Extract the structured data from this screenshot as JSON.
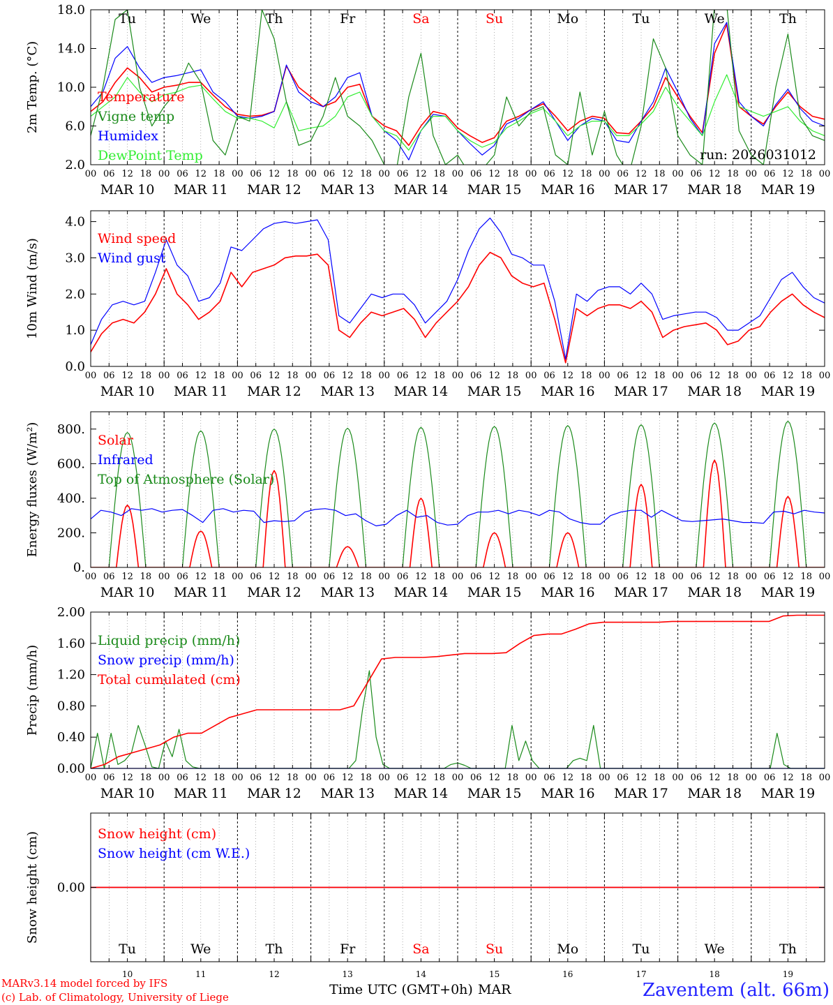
{
  "colors": {
    "red": "#ff0000",
    "green": "#1a8a1a",
    "blue": "#0000ff",
    "light_green": "#33ee33",
    "axis": "#000000",
    "grid": "#777777"
  },
  "day_names": [
    "Tu",
    "We",
    "Th",
    "Fr",
    "Sa",
    "Su",
    "Mo",
    "Tu",
    "We",
    "Th"
  ],
  "weekend_day_indices": [
    4,
    5
  ],
  "date_labels": [
    "MAR 10",
    "MAR 11",
    "MAR 12",
    "MAR 13",
    "MAR 14",
    "MAR 15",
    "MAR 16",
    "MAR 17",
    "MAR 18",
    "MAR 19"
  ],
  "day_numbers": [
    "10",
    "11",
    "12",
    "13",
    "14",
    "15",
    "16",
    "17",
    "18",
    "19"
  ],
  "hour_labels": [
    "00",
    "06",
    "12",
    "18"
  ],
  "final_hour_label": "00",
  "run_label": "run: 2026031012",
  "x_axis_label": "Time UTC (GMT+0h)",
  "month_label": "MAR",
  "credit_line1": "MARv3.14 model forced by IFS",
  "credit_line2": "(c) Lab. of Climatology, University of Liege",
  "station_label": "Zaventem (alt. 66m)",
  "chart_data": [
    {
      "id": "temp",
      "type": "line",
      "ylabel": "2m Temp. (°C)",
      "ylim": [
        2,
        18
      ],
      "ticks": [
        2,
        6,
        10,
        14,
        18
      ],
      "tick_labels": [
        "2.0",
        "6.0",
        "10.0",
        "14.0",
        "18.0"
      ],
      "legend": [
        "Temperature",
        "Vigne temp",
        "Humidex",
        "DewPoint Temp"
      ],
      "series": [
        {
          "name": "Temperature",
          "color": "red",
          "clip": false,
          "values": [
            7.5,
            8.5,
            10.5,
            12.0,
            11.0,
            9.5,
            10.0,
            10.2,
            10.5,
            10.5,
            9.2,
            8.0,
            7.2,
            7.0,
            7.1,
            7.5,
            12.2,
            10.0,
            9.0,
            8.0,
            8.5,
            10.0,
            10.3,
            7.0,
            6.0,
            5.5,
            4.0,
            6.0,
            7.5,
            7.2,
            5.8,
            5.0,
            4.3,
            4.8,
            6.5,
            7.0,
            7.7,
            8.3,
            7.0,
            5.5,
            6.5,
            7.0,
            6.8,
            5.3,
            5.2,
            6.5,
            8.0,
            11.0,
            9.0,
            7.0,
            5.3,
            13.5,
            16.5,
            8.0,
            7.0,
            6.2,
            8.0,
            9.5,
            8.0,
            7.0,
            6.7
          ]
        },
        {
          "name": "Humidex",
          "color": "blue",
          "clip": false,
          "values": [
            8.0,
            9.5,
            13.0,
            14.2,
            12.0,
            10.5,
            11.0,
            11.2,
            11.5,
            11.8,
            9.5,
            8.5,
            7.0,
            6.8,
            7.0,
            7.5,
            12.3,
            9.5,
            8.5,
            8.0,
            9.0,
            11.0,
            11.5,
            7.0,
            5.5,
            4.5,
            2.5,
            5.5,
            7.2,
            7.0,
            5.5,
            4.2,
            3.0,
            4.0,
            6.2,
            6.8,
            7.7,
            8.5,
            6.5,
            4.5,
            6.0,
            6.8,
            6.5,
            4.5,
            4.3,
            6.5,
            8.5,
            12.0,
            9.5,
            6.8,
            5.0,
            14.5,
            16.7,
            8.5,
            7.0,
            6.0,
            8.2,
            9.8,
            7.8,
            6.5,
            6.0
          ]
        },
        {
          "name": "DewPoint Temp",
          "color": "light_green",
          "clip": false,
          "values": [
            7.0,
            8.0,
            9.0,
            11.0,
            9.5,
            8.5,
            9.2,
            9.5,
            10.0,
            10.2,
            8.8,
            7.5,
            6.8,
            6.8,
            6.5,
            5.8,
            8.5,
            5.5,
            5.8,
            6.0,
            7.0,
            9.0,
            9.5,
            7.0,
            5.5,
            5.0,
            3.5,
            5.5,
            7.0,
            7.0,
            5.5,
            4.5,
            3.8,
            4.3,
            5.8,
            6.5,
            7.3,
            7.8,
            6.5,
            5.0,
            6.0,
            6.5,
            6.5,
            5.0,
            5.0,
            6.2,
            7.5,
            10.0,
            8.0,
            6.5,
            5.0,
            8.5,
            11.3,
            8.0,
            7.5,
            7.0,
            7.5,
            8.0,
            6.5,
            5.5,
            5.0
          ]
        },
        {
          "name": "Vigne temp",
          "color": "green",
          "clip": true,
          "values": [
            5.0,
            10.0,
            17.0,
            18.0,
            10.0,
            6.0,
            8.0,
            9.5,
            12.5,
            10.5,
            4.5,
            3.0,
            7.0,
            6.5,
            18.0,
            15.0,
            8.5,
            4.0,
            4.5,
            7.0,
            11.0,
            7.0,
            6.0,
            4.5,
            2.0,
            1.5,
            9.0,
            13.5,
            5.0,
            2.0,
            3.0,
            1.0,
            1.5,
            3.0,
            9.0,
            6.0,
            7.5,
            8.0,
            3.0,
            2.0,
            9.5,
            3.0,
            7.5,
            3.0,
            1.0,
            6.0,
            15.0,
            12.0,
            5.0,
            3.0,
            2.0,
            18.5,
            18.5,
            5.5,
            3.0,
            2.0,
            10.0,
            15.5,
            7.0,
            5.0,
            4.5
          ]
        }
      ]
    },
    {
      "id": "wind",
      "type": "line",
      "ylabel": "10m Wind (m/s)",
      "ylim": [
        0,
        4.3
      ],
      "ticks": [
        0,
        1,
        2,
        3,
        4
      ],
      "tick_labels": [
        "0.0",
        "1.0",
        "2.0",
        "3.0",
        "4.0"
      ],
      "legend": [
        "Wind speed",
        "Wind gust"
      ],
      "series": [
        {
          "name": "Wind speed",
          "color": "red",
          "clip": false,
          "values": [
            0.4,
            0.9,
            1.2,
            1.3,
            1.2,
            1.5,
            2.0,
            2.7,
            2.0,
            1.7,
            1.3,
            1.5,
            1.8,
            2.6,
            2.2,
            2.6,
            2.7,
            2.8,
            3.0,
            3.05,
            3.05,
            3.1,
            2.8,
            1.0,
            0.8,
            1.2,
            1.5,
            1.4,
            1.5,
            1.6,
            1.3,
            0.8,
            1.2,
            1.5,
            1.8,
            2.2,
            2.8,
            3.15,
            3.0,
            2.5,
            2.3,
            2.2,
            2.3,
            1.3,
            0.1,
            1.6,
            1.4,
            1.6,
            1.7,
            1.7,
            1.6,
            1.8,
            1.5,
            0.8,
            1.0,
            1.1,
            1.15,
            1.2,
            1.0,
            0.6,
            0.7,
            1.0,
            1.1,
            1.5,
            1.8,
            2.0,
            1.7,
            1.5,
            1.35
          ]
        },
        {
          "name": "Wind gust",
          "color": "blue",
          "clip": false,
          "values": [
            0.6,
            1.3,
            1.7,
            1.8,
            1.7,
            1.8,
            2.6,
            3.5,
            2.8,
            2.5,
            1.8,
            1.9,
            2.3,
            3.3,
            3.2,
            3.5,
            3.8,
            3.95,
            4.0,
            3.95,
            4.0,
            4.05,
            3.5,
            1.4,
            1.2,
            1.6,
            2.0,
            1.9,
            2.0,
            2.0,
            1.7,
            1.2,
            1.5,
            1.8,
            2.4,
            3.2,
            3.8,
            4.1,
            3.7,
            3.1,
            3.0,
            2.8,
            2.8,
            1.8,
            0.2,
            2.0,
            1.8,
            2.1,
            2.2,
            2.2,
            2.0,
            2.3,
            2.0,
            1.3,
            1.4,
            1.45,
            1.5,
            1.5,
            1.35,
            1.0,
            1.0,
            1.2,
            1.4,
            1.9,
            2.4,
            2.6,
            2.2,
            1.9,
            1.75
          ]
        }
      ]
    },
    {
      "id": "flux",
      "type": "line",
      "ylabel": "Energy fluxes (W/m²)",
      "ylim": [
        0,
        900
      ],
      "ticks": [
        0,
        200,
        400,
        600,
        800
      ],
      "tick_labels": [
        "0.",
        "200.",
        "400.",
        "600.",
        "800."
      ],
      "legend": [
        "Solar",
        "Infrared",
        "Top of Atmosphere (Solar)"
      ],
      "series": [
        {
          "name": "Top of Atmosphere (Solar)",
          "color": "green",
          "diurnal": "peak",
          "values": [
            780,
            790,
            800,
            805,
            810,
            815,
            820,
            825,
            835,
            845
          ]
        },
        {
          "name": "Solar",
          "color": "red",
          "diurnal": "peak",
          "values": [
            360,
            210,
            560,
            120,
            400,
            200,
            200,
            480,
            620,
            410
          ]
        },
        {
          "name": "Infrared",
          "color": "blue",
          "clip": false,
          "values": [
            280,
            330,
            320,
            300,
            340,
            330,
            340,
            320,
            330,
            335,
            300,
            260,
            330,
            340,
            320,
            330,
            325,
            260,
            270,
            265,
            270,
            320,
            335,
            340,
            330,
            300,
            310,
            270,
            240,
            250,
            300,
            330,
            290,
            300,
            260,
            245,
            250,
            300,
            320,
            320,
            330,
            310,
            330,
            320,
            300,
            330,
            320,
            280,
            260,
            250,
            250,
            300,
            320,
            330,
            330,
            290,
            330,
            300,
            270,
            265,
            270,
            275,
            280,
            270,
            260,
            260,
            255,
            320,
            325,
            310,
            330,
            320,
            315
          ]
        }
      ]
    },
    {
      "id": "precip",
      "type": "line",
      "ylabel": "Precip (mm/h)",
      "ylim": [
        0,
        2
      ],
      "ticks": [
        0,
        0.4,
        0.8,
        1.2,
        1.6,
        2.0
      ],
      "tick_labels": [
        "0.00",
        "0.40",
        "0.80",
        "1.20",
        "1.60",
        "2.00"
      ],
      "legend": [
        "Liquid precip (mm/h)",
        "Snow precip (mm/h)",
        "Total cumulated (cm)"
      ],
      "series": [
        {
          "name": "Liquid precip (mm/h)",
          "color": "green",
          "clip": false,
          "values": [
            0,
            0.45,
            0.0,
            0.45,
            0.05,
            0.1,
            0.2,
            0.55,
            0.3,
            0.02,
            0,
            0.35,
            0.15,
            0.5,
            0.1,
            0.02,
            0,
            0,
            0,
            0,
            0,
            0,
            0,
            0,
            0,
            0,
            0,
            0,
            0,
            0,
            0,
            0,
            0,
            0,
            0,
            0,
            0,
            0,
            0,
            0.1,
            0.75,
            1.25,
            0.4,
            0.05,
            0,
            0,
            0,
            0,
            0,
            0,
            0,
            0,
            0,
            0.05,
            0.07,
            0.04,
            0,
            0,
            0,
            0,
            0,
            0,
            0.55,
            0.1,
            0.35,
            0.1,
            0,
            0,
            0,
            0,
            0,
            0.1,
            0.13,
            0.1,
            0.55,
            0,
            0,
            0,
            0,
            0,
            0,
            0,
            0,
            0,
            0,
            0,
            0,
            0,
            0,
            0,
            0,
            0,
            0,
            0,
            0,
            0,
            0,
            0,
            0,
            0,
            0,
            0.45,
            0.05,
            0,
            0,
            0,
            0,
            0,
            0
          ]
        },
        {
          "name": "Snow precip (mm/h)",
          "color": "blue",
          "clip": false,
          "values": [
            0,
            0
          ]
        },
        {
          "name": "Total cumulated (cm)",
          "color": "red",
          "clip": false,
          "values": [
            0,
            0.05,
            0.15,
            0.2,
            0.25,
            0.3,
            0.4,
            0.45,
            0.45,
            0.55,
            0.65,
            0.7,
            0.75,
            0.75,
            0.75,
            0.75,
            0.75,
            0.75,
            0.75,
            0.8,
            1.1,
            1.4,
            1.42,
            1.42,
            1.42,
            1.43,
            1.45,
            1.47,
            1.47,
            1.47,
            1.48,
            1.6,
            1.7,
            1.72,
            1.72,
            1.78,
            1.85,
            1.87,
            1.87,
            1.87,
            1.87,
            1.87,
            1.88,
            1.88,
            1.88,
            1.88,
            1.88,
            1.88,
            1.88,
            1.88,
            1.95,
            1.96,
            1.96,
            1.96
          ]
        }
      ]
    },
    {
      "id": "snow",
      "type": "line",
      "ylabel": "Snow height (cm)",
      "ylim": [
        -1,
        1
      ],
      "ticks": [
        0
      ],
      "tick_labels": [
        "0.00"
      ],
      "legend": [
        "Snow height (cm)",
        "Snow height (cm W.E.)"
      ],
      "series": [
        {
          "name": "Snow height (cm W.E.)",
          "color": "blue",
          "clip": false,
          "values": [
            0,
            0
          ]
        },
        {
          "name": "Snow height (cm)",
          "color": "red",
          "clip": false,
          "values": [
            0,
            0
          ]
        }
      ]
    }
  ]
}
